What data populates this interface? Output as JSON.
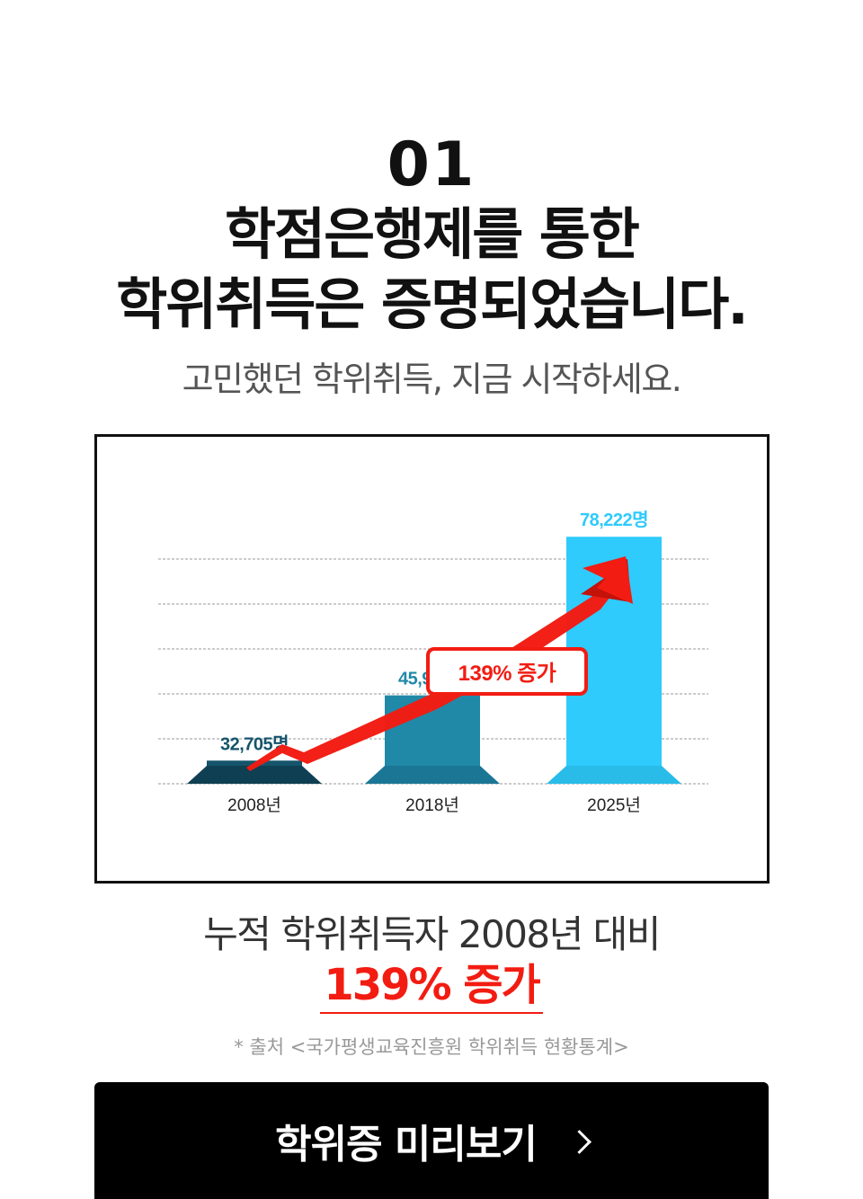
{
  "section": {
    "number": "01",
    "title_line1": "학점은행제를 통한",
    "title_line2": "학위취득은 증명되었습니다.",
    "subtitle": "고민했던 학위취득, 지금 시작하세요."
  },
  "chart_data": {
    "type": "bar",
    "categories": [
      "2008년",
      "2018년",
      "2025년"
    ],
    "values": [
      32705,
      45976,
      78222
    ],
    "value_labels": [
      "32,705명",
      "45,976명",
      "78,222명"
    ],
    "colors": [
      "#15546b",
      "#2189a8",
      "#2ecbfc"
    ],
    "base_colors": [
      "#0f3f52",
      "#1b7696",
      "#29bce8"
    ],
    "annotation": "139% 증가",
    "arrow_color": "#f21c12",
    "grid": true,
    "ylim": [
      28000,
      81000
    ]
  },
  "summary": {
    "line1": "누적 학위취득자 2008년 대비",
    "highlight": "139% 증가"
  },
  "source_note": "* 출처 <국가평생교육진흥원 학위취득 현황통계>",
  "cta": {
    "label": "학위증 미리보기",
    "icon": "chevron-right-icon"
  }
}
